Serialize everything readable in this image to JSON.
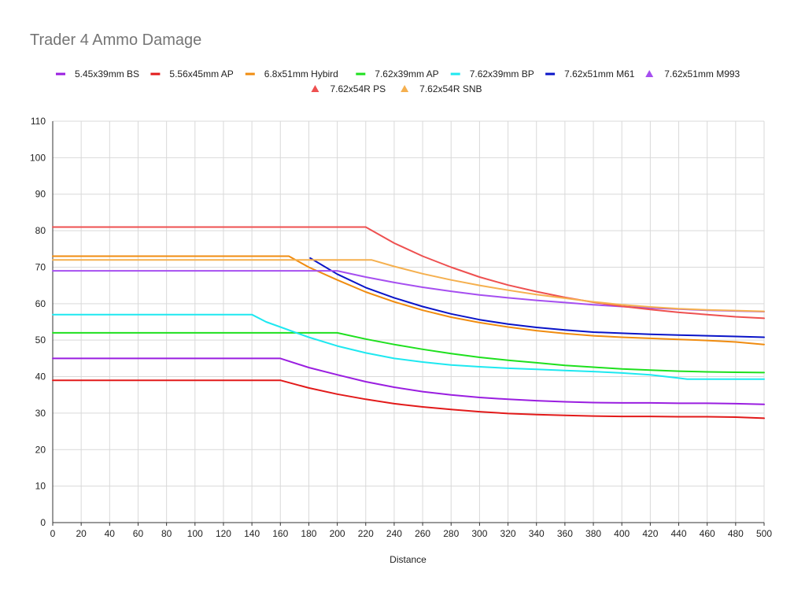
{
  "chart_data": {
    "type": "line",
    "title": "Trader 4 Ammo Damage",
    "xlabel": "Distance",
    "ylabel": "",
    "xlim": [
      0,
      500
    ],
    "ylim": [
      0,
      110
    ],
    "x_ticks": [
      0,
      20,
      40,
      60,
      80,
      100,
      120,
      140,
      160,
      180,
      200,
      220,
      240,
      260,
      280,
      300,
      320,
      340,
      360,
      380,
      400,
      420,
      440,
      460,
      480,
      500
    ],
    "y_ticks": [
      0,
      10,
      20,
      30,
      40,
      50,
      60,
      70,
      80,
      90,
      100,
      110
    ],
    "legend_position": "top",
    "series": [
      {
        "name": "5.45x39mm BS",
        "color": "#9a1ee0",
        "marker": "line",
        "points": [
          [
            0,
            45
          ],
          [
            160,
            45
          ],
          [
            180,
            42.5
          ],
          [
            200,
            40.5
          ],
          [
            220,
            38.6
          ],
          [
            240,
            37.1
          ],
          [
            260,
            35.9
          ],
          [
            280,
            35
          ],
          [
            300,
            34.3
          ],
          [
            320,
            33.8
          ],
          [
            340,
            33.4
          ],
          [
            360,
            33.1
          ],
          [
            380,
            32.9
          ],
          [
            400,
            32.8
          ],
          [
            420,
            32.8
          ],
          [
            440,
            32.7
          ],
          [
            460,
            32.7
          ],
          [
            480,
            32.6
          ],
          [
            500,
            32.4
          ]
        ]
      },
      {
        "name": "5.56x45mm AP",
        "color": "#e21a1a",
        "marker": "line",
        "points": [
          [
            0,
            39
          ],
          [
            160,
            39
          ],
          [
            180,
            36.9
          ],
          [
            200,
            35.2
          ],
          [
            220,
            33.8
          ],
          [
            240,
            32.6
          ],
          [
            260,
            31.7
          ],
          [
            280,
            31
          ],
          [
            300,
            30.4
          ],
          [
            320,
            29.9
          ],
          [
            340,
            29.6
          ],
          [
            360,
            29.4
          ],
          [
            380,
            29.2
          ],
          [
            400,
            29.1
          ],
          [
            420,
            29.1
          ],
          [
            440,
            29
          ],
          [
            460,
            29
          ],
          [
            480,
            28.9
          ],
          [
            500,
            28.6
          ]
        ]
      },
      {
        "name": "6.8x51mm Hybird",
        "color": "#f08c10",
        "marker": "line",
        "points": [
          [
            0,
            73
          ],
          [
            166,
            73
          ],
          [
            180,
            70
          ],
          [
            200,
            66.5
          ],
          [
            220,
            63.2
          ],
          [
            240,
            60.5
          ],
          [
            260,
            58.2
          ],
          [
            280,
            56.3
          ],
          [
            300,
            54.8
          ],
          [
            320,
            53.6
          ],
          [
            340,
            52.6
          ],
          [
            360,
            51.8
          ],
          [
            380,
            51.2
          ],
          [
            400,
            50.8
          ],
          [
            420,
            50.5
          ],
          [
            440,
            50.2
          ],
          [
            460,
            49.9
          ],
          [
            480,
            49.5
          ],
          [
            500,
            48.8
          ]
        ]
      },
      {
        "name": "7.62x39mm AP",
        "color": "#1ee01e",
        "marker": "line",
        "points": [
          [
            0,
            52
          ],
          [
            200,
            52
          ],
          [
            220,
            50.3
          ],
          [
            240,
            48.8
          ],
          [
            260,
            47.5
          ],
          [
            280,
            46.3
          ],
          [
            300,
            45.3
          ],
          [
            320,
            44.5
          ],
          [
            340,
            43.8
          ],
          [
            360,
            43.1
          ],
          [
            380,
            42.6
          ],
          [
            400,
            42.1
          ],
          [
            420,
            41.8
          ],
          [
            440,
            41.5
          ],
          [
            460,
            41.3
          ],
          [
            480,
            41.2
          ],
          [
            500,
            41.1
          ]
        ]
      },
      {
        "name": "7.62x39mm BP",
        "color": "#1ee8f0",
        "marker": "line",
        "points": [
          [
            0,
            57
          ],
          [
            140,
            57
          ],
          [
            150,
            55
          ],
          [
            160,
            53.6
          ],
          [
            180,
            50.8
          ],
          [
            200,
            48.4
          ],
          [
            220,
            46.5
          ],
          [
            240,
            45
          ],
          [
            260,
            44
          ],
          [
            280,
            43.2
          ],
          [
            300,
            42.7
          ],
          [
            320,
            42.3
          ],
          [
            340,
            42
          ],
          [
            360,
            41.7
          ],
          [
            380,
            41.4
          ],
          [
            400,
            41
          ],
          [
            420,
            40.5
          ],
          [
            440,
            39.6
          ],
          [
            446,
            39.3
          ],
          [
            500,
            39.3
          ]
        ]
      },
      {
        "name": "7.62x51mm M61",
        "color": "#0a14c8",
        "marker": "line",
        "points": [
          [
            181,
            72.5
          ],
          [
            200,
            68.1
          ],
          [
            220,
            64.4
          ],
          [
            240,
            61.6
          ],
          [
            260,
            59.2
          ],
          [
            280,
            57.2
          ],
          [
            300,
            55.6
          ],
          [
            320,
            54.4
          ],
          [
            340,
            53.5
          ],
          [
            360,
            52.8
          ],
          [
            380,
            52.2
          ],
          [
            400,
            51.9
          ],
          [
            420,
            51.6
          ],
          [
            440,
            51.4
          ],
          [
            460,
            51.2
          ],
          [
            480,
            51
          ],
          [
            500,
            50.8
          ]
        ]
      },
      {
        "name": "7.62x51mm M993",
        "color": "#a64ff0",
        "marker": "triangle",
        "points": [
          [
            0,
            69
          ],
          [
            200,
            69
          ],
          [
            220,
            67.3
          ],
          [
            240,
            65.8
          ],
          [
            260,
            64.5
          ],
          [
            280,
            63.4
          ],
          [
            300,
            62.4
          ],
          [
            320,
            61.6
          ],
          [
            340,
            60.9
          ],
          [
            360,
            60.3
          ],
          [
            380,
            59.7
          ],
          [
            400,
            59.2
          ],
          [
            420,
            58.8
          ],
          [
            440,
            58.5
          ],
          [
            460,
            58.2
          ],
          [
            480,
            58
          ],
          [
            500,
            57.8
          ]
        ]
      },
      {
        "name": "7.62x54R PS",
        "color": "#ee5050",
        "marker": "triangle",
        "points": [
          [
            0,
            81
          ],
          [
            220,
            81
          ],
          [
            240,
            76.6
          ],
          [
            260,
            73
          ],
          [
            280,
            70
          ],
          [
            300,
            67.3
          ],
          [
            320,
            65.1
          ],
          [
            340,
            63.3
          ],
          [
            360,
            61.7
          ],
          [
            380,
            60.4
          ],
          [
            400,
            59.3
          ],
          [
            420,
            58.4
          ],
          [
            440,
            57.6
          ],
          [
            460,
            57
          ],
          [
            480,
            56.4
          ],
          [
            500,
            56
          ]
        ]
      },
      {
        "name": "7.62x54R SNB",
        "color": "#f5b04f",
        "marker": "triangle",
        "points": [
          [
            0,
            72
          ],
          [
            224,
            72
          ],
          [
            240,
            70.2
          ],
          [
            260,
            68.2
          ],
          [
            280,
            66.5
          ],
          [
            300,
            65
          ],
          [
            320,
            63.7
          ],
          [
            340,
            62.5
          ],
          [
            360,
            61.5
          ],
          [
            380,
            60.5
          ],
          [
            400,
            59.7
          ],
          [
            420,
            59.1
          ],
          [
            440,
            58.6
          ],
          [
            460,
            58.3
          ],
          [
            480,
            58.1
          ],
          [
            500,
            57.9
          ]
        ]
      }
    ]
  }
}
